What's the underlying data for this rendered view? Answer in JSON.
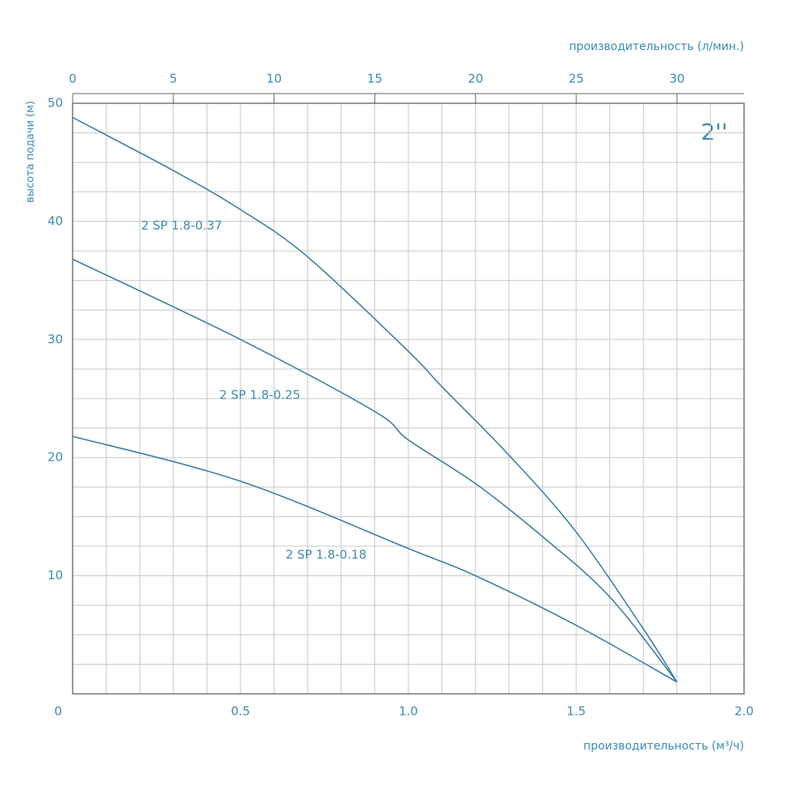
{
  "chart_data": {
    "type": "line",
    "x_title": "производительность (м³/ч)",
    "x2_title": "производительность (л/мин.)",
    "y_title": "высота подачи (м)",
    "annotation": "2''",
    "xlim": [
      0,
      2.0
    ],
    "xticks": [
      0,
      0.5,
      {
        "value": 1,
        "label": "1.0"
      },
      1.5,
      {
        "value": 2,
        "label": "2.0"
      }
    ],
    "x2lim": [
      0,
      33.33
    ],
    "x2ticks": [
      0,
      5,
      10,
      15,
      20,
      25,
      30
    ],
    "ylim": [
      0,
      50
    ],
    "yticks": [
      10,
      20,
      30,
      40,
      50
    ],
    "grid": true,
    "color": "#3d7fa8",
    "series": [
      {
        "name": "2 SP 1.8-0.37",
        "x": [
          0,
          0.3,
          0.5,
          0.7,
          1.0,
          1.1,
          1.3,
          1.5,
          1.7,
          1.8
        ],
        "values": [
          48.8,
          44.3,
          41,
          37,
          29,
          26,
          20.2,
          13.7,
          5.5,
          1
        ]
      },
      {
        "name": "2 SP 1.8-0.25",
        "x": [
          0,
          0.5,
          0.9,
          1.0,
          1.2,
          1.4,
          1.6,
          1.8
        ],
        "values": [
          36.8,
          30,
          23.9,
          21.5,
          17.8,
          13.3,
          8.2,
          1
        ]
      },
      {
        "name": "2 SP 1.8-0.18",
        "x": [
          0,
          0.5,
          1.0,
          1.2,
          1.5,
          1.8
        ],
        "values": [
          21.8,
          18,
          12.3,
          10,
          5.8,
          1
        ]
      }
    ]
  }
}
